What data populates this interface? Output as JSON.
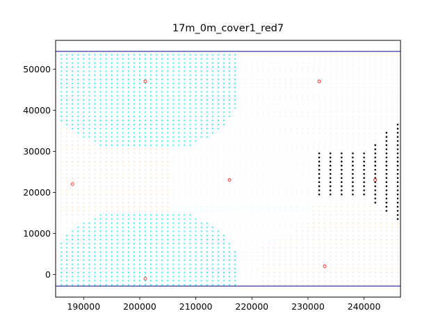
{
  "chart_data": {
    "type": "scatter",
    "title": "17m_0m_cover1_red7",
    "xlabel": "",
    "ylabel": "",
    "xlim": [
      185000,
      246500
    ],
    "ylim": [
      -5500,
      57000
    ],
    "x_ticks": [
      190000,
      200000,
      210000,
      220000,
      230000,
      240000
    ],
    "y_ticks": [
      0,
      10000,
      20000,
      30000,
      40000,
      50000
    ],
    "x_tick_labels": [
      "190000",
      "200000",
      "210000",
      "220000",
      "230000",
      "240000"
    ],
    "y_tick_labels": [
      "0",
      "10000",
      "20000",
      "30000",
      "40000",
      "50000"
    ],
    "grid": false,
    "legend": "none",
    "horizontal_lines": [
      {
        "y": 54300,
        "color": "#00008b"
      },
      {
        "y": -2800,
        "color": "#00008b"
      }
    ],
    "grid_regions": {
      "x_range": [
        186000,
        246000
      ],
      "y_range": [
        -2500,
        53500
      ],
      "spacing_x": 1000,
      "spacing_y": 1000,
      "colors": {
        "cyan": "#3de8e2",
        "light_cyan": "#e8fbfb",
        "pale_tan": "#faf2e2",
        "peach": "#fbe6d4",
        "black": "#000000"
      }
    },
    "centers": [
      {
        "x": 201000,
        "y": 47000
      },
      {
        "x": 232000,
        "y": 47000
      },
      {
        "x": 188000,
        "y": 22000
      },
      {
        "x": 216000,
        "y": 23000
      },
      {
        "x": 242000,
        "y": 23000
      },
      {
        "x": 201000,
        "y": -1000
      },
      {
        "x": 233000,
        "y": 2000
      }
    ],
    "center_marker_color": "#ff0000"
  }
}
